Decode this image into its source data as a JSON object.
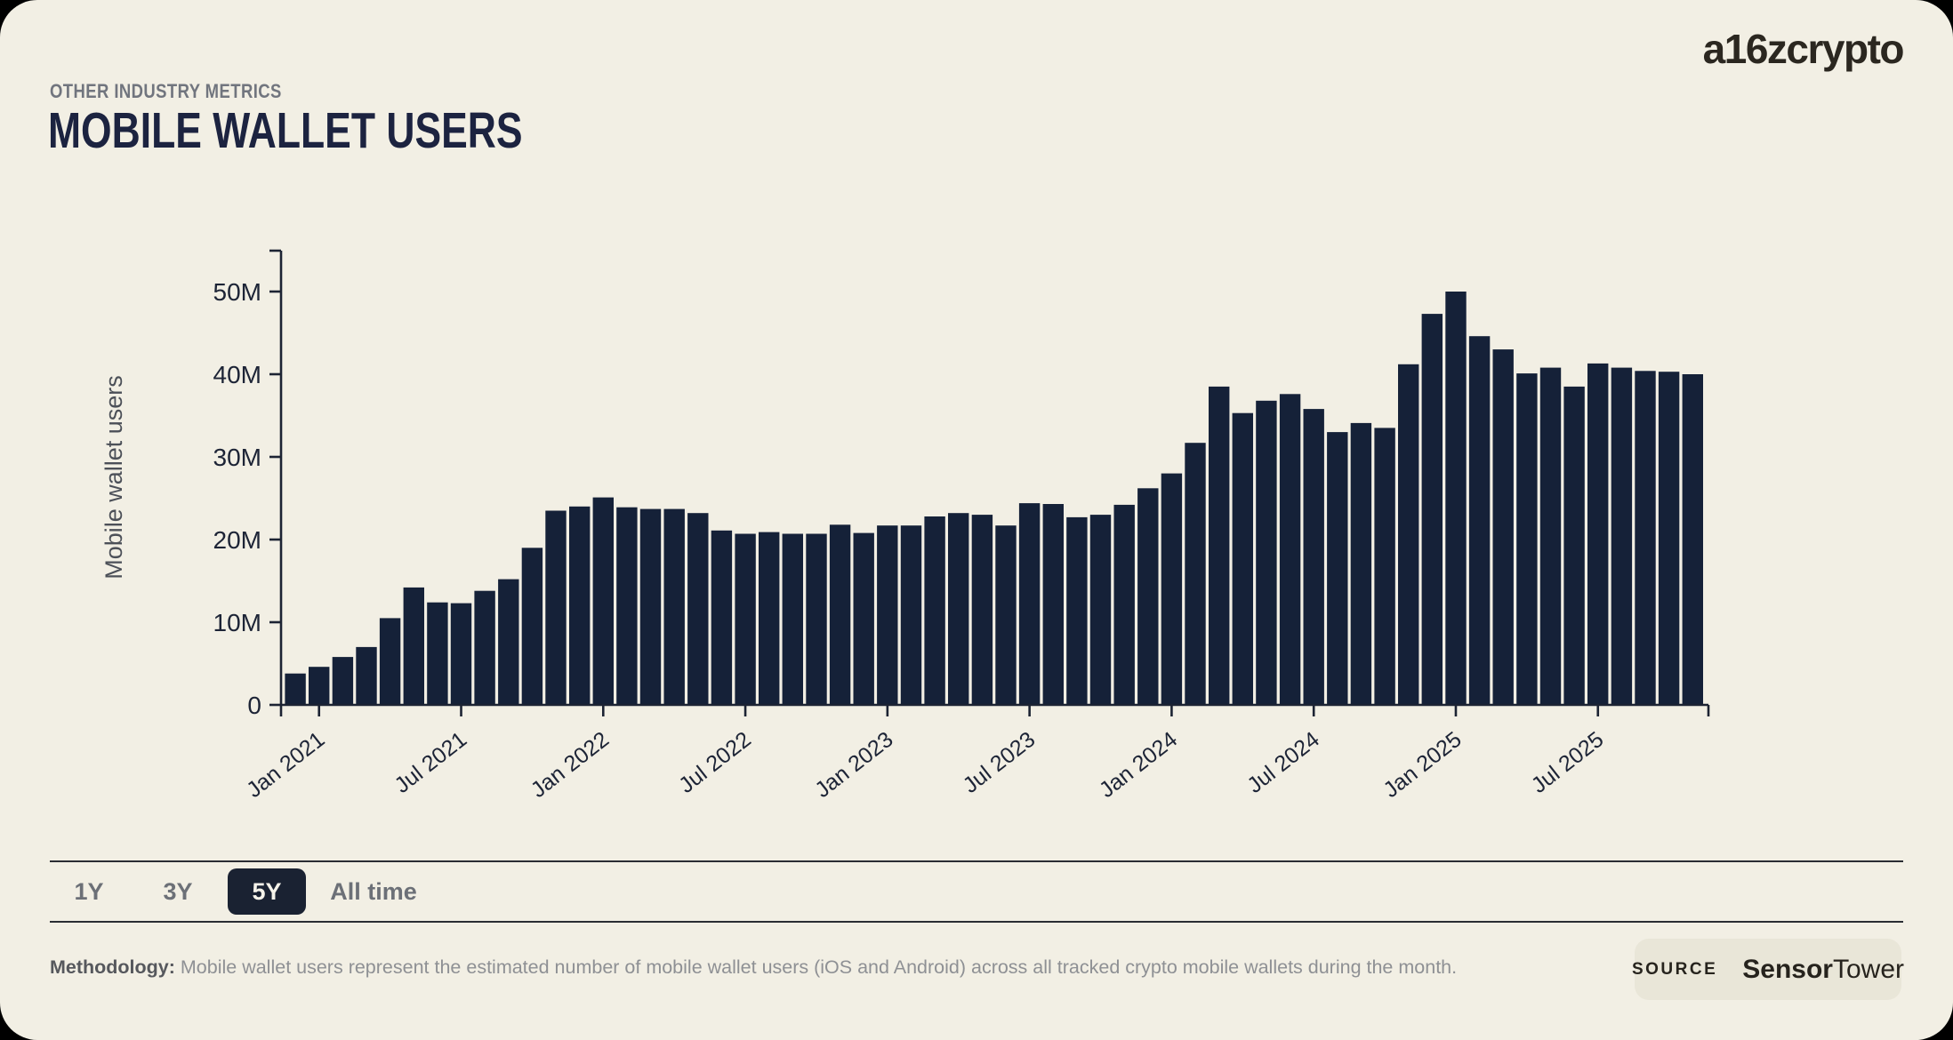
{
  "header": {
    "kicker": "OTHER INDUSTRY METRICS",
    "title": "MOBILE WALLET USERS",
    "logo": "a16zcrypto"
  },
  "chart_data": {
    "type": "bar",
    "title": "Mobile Wallet Users",
    "xlabel": "",
    "ylabel": "Mobile wallet users",
    "unit": "millions",
    "ylim": [
      0,
      55
    ],
    "grid": false,
    "legend": "none",
    "y_tick_labels": [
      "0",
      "10M",
      "20M",
      "30M",
      "40M",
      "50M"
    ],
    "y_tick_values": [
      0,
      10,
      20,
      30,
      40,
      50
    ],
    "x_tick_labels": [
      "Jan 2021",
      "Jul 2021",
      "Jan 2022",
      "Jul 2022",
      "Jan 2023",
      "Jul 2023",
      "Jan 2024",
      "Jul 2024",
      "Jan 2025",
      "Jul 2025"
    ],
    "x_tick_month_indices": [
      1,
      7,
      13,
      19,
      25,
      31,
      37,
      43,
      49,
      55
    ],
    "categories": [
      "Dec 2020",
      "Jan 2021",
      "Feb 2021",
      "Mar 2021",
      "Apr 2021",
      "May 2021",
      "Jun 2021",
      "Jul 2021",
      "Aug 2021",
      "Sep 2021",
      "Oct 2021",
      "Nov 2021",
      "Dec 2021",
      "Jan 2022",
      "Feb 2022",
      "Mar 2022",
      "Apr 2022",
      "May 2022",
      "Jun 2022",
      "Jul 2022",
      "Aug 2022",
      "Sep 2022",
      "Oct 2022",
      "Nov 2022",
      "Dec 2022",
      "Jan 2023",
      "Feb 2023",
      "Mar 2023",
      "Apr 2023",
      "May 2023",
      "Jun 2023",
      "Jul 2023",
      "Aug 2023",
      "Sep 2023",
      "Oct 2023",
      "Nov 2023",
      "Dec 2023",
      "Jan 2024",
      "Feb 2024",
      "Mar 2024",
      "Apr 2024",
      "May 2024",
      "Jun 2024",
      "Jul 2024",
      "Aug 2024",
      "Sep 2024",
      "Oct 2024",
      "Nov 2024",
      "Dec 2024",
      "Jan 2025",
      "Feb 2025",
      "Mar 2025",
      "Apr 2025",
      "May 2025",
      "Jun 2025",
      "Jul 2025",
      "Aug 2025",
      "Sep 2025",
      "Oct 2025",
      "Nov 2025"
    ],
    "values": [
      3.8,
      4.6,
      5.8,
      7.0,
      10.5,
      14.2,
      12.4,
      12.3,
      13.8,
      15.2,
      19.0,
      23.5,
      24.0,
      25.1,
      23.9,
      23.7,
      23.7,
      23.2,
      21.1,
      20.7,
      20.9,
      20.7,
      20.7,
      21.8,
      20.8,
      21.7,
      21.7,
      22.8,
      23.2,
      23.0,
      21.7,
      24.4,
      24.3,
      22.7,
      23.0,
      24.2,
      26.2,
      28.0,
      31.7,
      38.5,
      35.3,
      36.8,
      37.6,
      35.8,
      33.0,
      34.1,
      33.5,
      41.2,
      47.3,
      50.0,
      44.6,
      43.0,
      40.1,
      40.8,
      38.5,
      41.3,
      40.8,
      40.4,
      40.3,
      40.0
    ]
  },
  "controls": {
    "ranges": [
      {
        "label": "1Y",
        "selected": false
      },
      {
        "label": "3Y",
        "selected": false
      },
      {
        "label": "5Y",
        "selected": true
      },
      {
        "label": "All time",
        "selected": false
      }
    ]
  },
  "footer": {
    "methodology_label": "Methodology:",
    "methodology_text": " Mobile wallet users represent the estimated number of mobile wallet users (iOS and Android) across all tracked crypto mobile wallets during the month.",
    "source_label": "SOURCE",
    "source_name_bold": "Sensor",
    "source_name_regular": "Tower"
  },
  "colors": {
    "background": "#f2efe4",
    "bar": "#152138",
    "axis": "#1c2333",
    "title": "#1c2340",
    "kicker": "#71757e",
    "axis_label": "#4c5058",
    "selected_pill_bg": "#1a2232",
    "selected_pill_text": "#f5f3ea",
    "badge_bg": "#e9e6d8",
    "outside": "#000000"
  }
}
